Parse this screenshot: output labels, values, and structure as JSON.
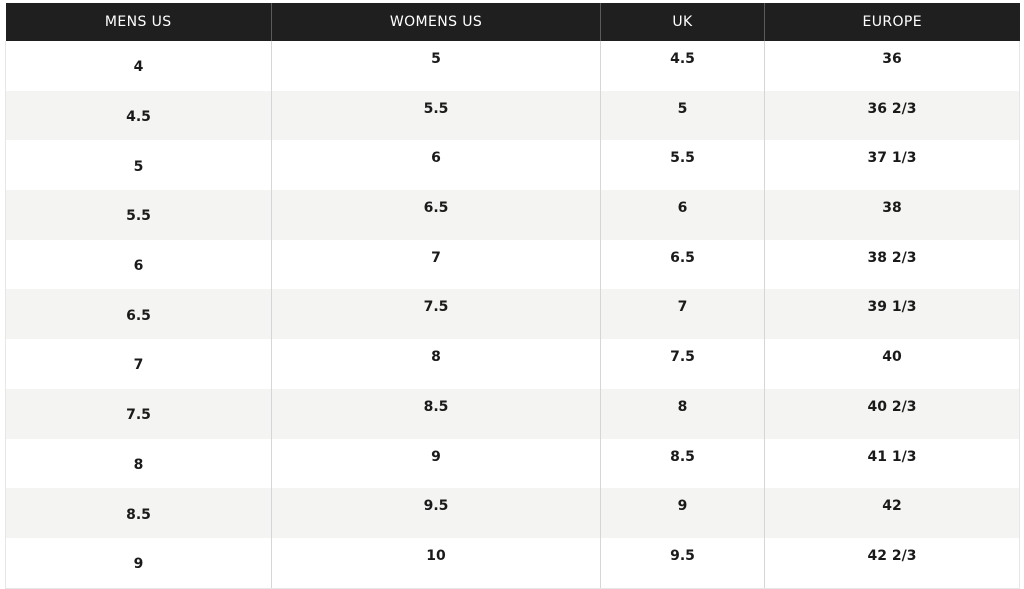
{
  "table": {
    "headers": [
      "MENS US",
      "WOMENS US",
      "UK",
      "EUROPE"
    ],
    "rows": [
      [
        "4",
        "5",
        "4.5",
        "36"
      ],
      [
        "4.5",
        "5.5",
        "5",
        "36 2/3"
      ],
      [
        "5",
        "6",
        "5.5",
        "37 1/3"
      ],
      [
        "5.5",
        "6.5",
        "6",
        "38"
      ],
      [
        "6",
        "7",
        "6.5",
        "38 2/3"
      ],
      [
        "6.5",
        "7.5",
        "7",
        "39 1/3"
      ],
      [
        "7",
        "8",
        "7.5",
        "40"
      ],
      [
        "7.5",
        "8.5",
        "8",
        "40 2/3"
      ],
      [
        "8",
        "9",
        "8.5",
        "41 1/3"
      ],
      [
        "8.5",
        "9.5",
        "9",
        "42"
      ],
      [
        "9",
        "10",
        "9.5",
        "42 2/3"
      ]
    ]
  },
  "colors": {
    "header_background": "#1f1f1f",
    "header_text": "#ffffff",
    "row_alt_background": "#f4f4f2",
    "cell_text": "#1a1a1a"
  }
}
